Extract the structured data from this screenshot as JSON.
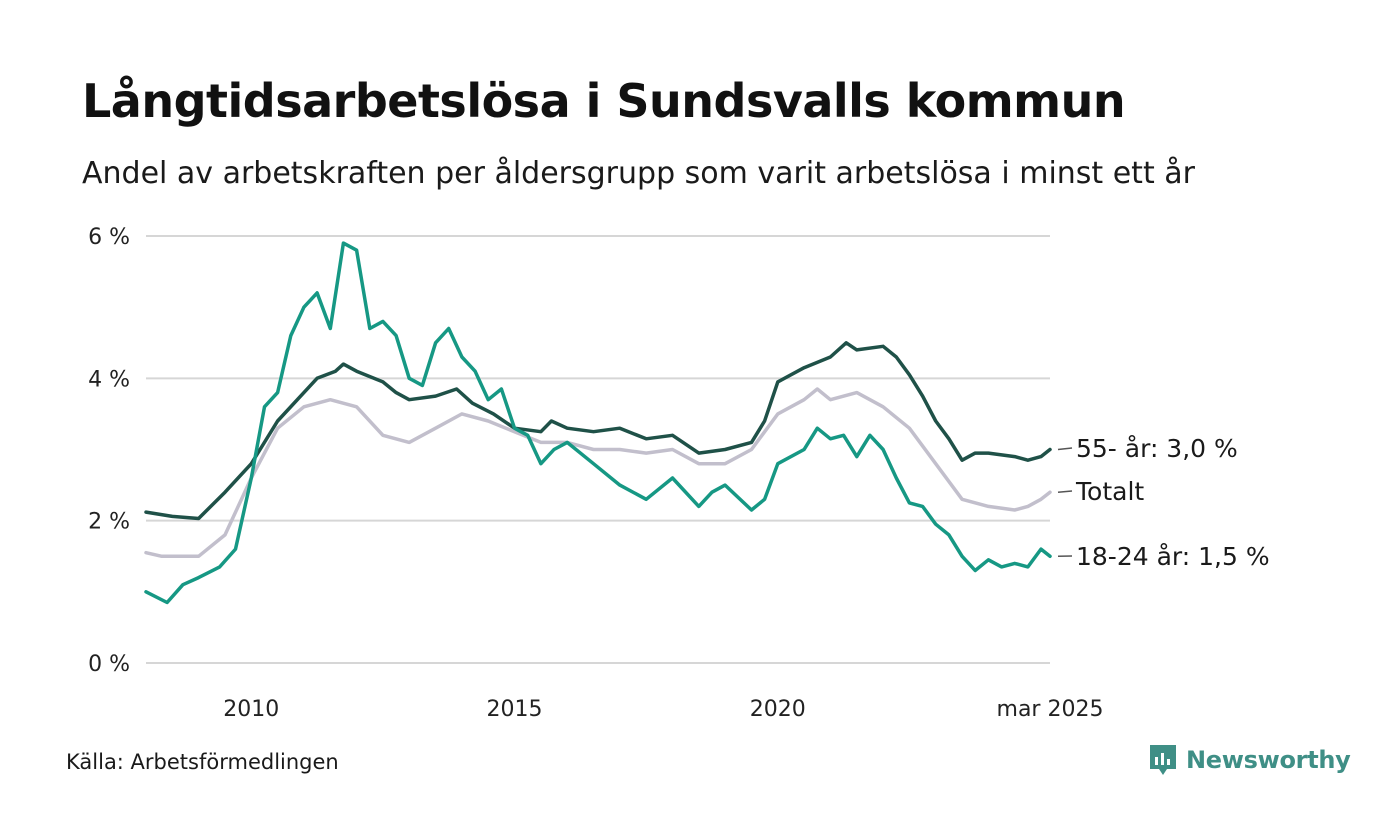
{
  "title": "Långtidsarbetslösa i Sundsvalls kommun",
  "subtitle": "Andel av arbetskraften per åldersgrupp som varit arbetslösa i minst ett år",
  "source": "Källa: Arbetsförmedlingen",
  "brand": "Newsworthy",
  "colors": {
    "age_55": "#1f5148",
    "total": "#c2bfcc",
    "age_18_24": "#169884",
    "grid": "#d6d6d6",
    "brand": "#3f8f86"
  },
  "chart_data": {
    "type": "line",
    "title": "Långtidsarbetslösa i Sundsvalls kommun",
    "subtitle": "Andel av arbetskraften per åldersgrupp som varit arbetslösa i minst ett år",
    "xlabel": "",
    "ylabel": "",
    "x_range": [
      2008.0,
      2025.17
    ],
    "ylim": [
      0,
      6
    ],
    "y_ticks": [
      0,
      2,
      4,
      6
    ],
    "y_tick_labels": [
      "0 %",
      "2 %",
      "4 %",
      "6 %"
    ],
    "x_ticks": [
      2010,
      2015,
      2020,
      2025.17
    ],
    "x_tick_labels": [
      "2010",
      "2015",
      "2020",
      "mar 2025"
    ],
    "grid": "horizontal",
    "series": [
      {
        "name": "55- år",
        "label": "55- år: 3,0 %",
        "color": "#1f5148",
        "points": [
          [
            2008.0,
            2.12
          ],
          [
            2008.5,
            2.06
          ],
          [
            2009.0,
            2.03
          ],
          [
            2009.5,
            2.4
          ],
          [
            2010.0,
            2.8
          ],
          [
            2010.5,
            3.4
          ],
          [
            2011.0,
            3.8
          ],
          [
            2011.25,
            4.0
          ],
          [
            2011.6,
            4.1
          ],
          [
            2011.75,
            4.2
          ],
          [
            2012.0,
            4.1
          ],
          [
            2012.5,
            3.95
          ],
          [
            2012.75,
            3.8
          ],
          [
            2013.0,
            3.7
          ],
          [
            2013.5,
            3.75
          ],
          [
            2013.9,
            3.85
          ],
          [
            2014.2,
            3.65
          ],
          [
            2014.6,
            3.5
          ],
          [
            2015.0,
            3.3
          ],
          [
            2015.5,
            3.25
          ],
          [
            2015.7,
            3.4
          ],
          [
            2016.0,
            3.3
          ],
          [
            2016.5,
            3.25
          ],
          [
            2017.0,
            3.3
          ],
          [
            2017.5,
            3.15
          ],
          [
            2018.0,
            3.2
          ],
          [
            2018.5,
            2.95
          ],
          [
            2019.0,
            3.0
          ],
          [
            2019.5,
            3.1
          ],
          [
            2019.75,
            3.4
          ],
          [
            2020.0,
            3.95
          ],
          [
            2020.5,
            4.15
          ],
          [
            2021.0,
            4.3
          ],
          [
            2021.3,
            4.5
          ],
          [
            2021.5,
            4.4
          ],
          [
            2022.0,
            4.45
          ],
          [
            2022.25,
            4.3
          ],
          [
            2022.5,
            4.05
          ],
          [
            2022.75,
            3.75
          ],
          [
            2023.0,
            3.4
          ],
          [
            2023.25,
            3.15
          ],
          [
            2023.5,
            2.85
          ],
          [
            2023.75,
            2.95
          ],
          [
            2024.0,
            2.95
          ],
          [
            2024.5,
            2.9
          ],
          [
            2024.75,
            2.85
          ],
          [
            2025.0,
            2.9
          ],
          [
            2025.17,
            3.0
          ]
        ]
      },
      {
        "name": "Totalt",
        "label": "Totalt",
        "color": "#c2bfcc",
        "points": [
          [
            2008.0,
            1.55
          ],
          [
            2008.3,
            1.5
          ],
          [
            2009.0,
            1.5
          ],
          [
            2009.5,
            1.8
          ],
          [
            2010.0,
            2.6
          ],
          [
            2010.5,
            3.3
          ],
          [
            2011.0,
            3.6
          ],
          [
            2011.5,
            3.7
          ],
          [
            2012.0,
            3.6
          ],
          [
            2012.5,
            3.2
          ],
          [
            2013.0,
            3.1
          ],
          [
            2013.5,
            3.3
          ],
          [
            2014.0,
            3.5
          ],
          [
            2014.5,
            3.4
          ],
          [
            2015.0,
            3.25
          ],
          [
            2015.5,
            3.1
          ],
          [
            2016.0,
            3.1
          ],
          [
            2016.5,
            3.0
          ],
          [
            2017.0,
            3.0
          ],
          [
            2017.5,
            2.95
          ],
          [
            2018.0,
            3.0
          ],
          [
            2018.5,
            2.8
          ],
          [
            2019.0,
            2.8
          ],
          [
            2019.5,
            3.0
          ],
          [
            2020.0,
            3.5
          ],
          [
            2020.5,
            3.7
          ],
          [
            2020.75,
            3.85
          ],
          [
            2021.0,
            3.7
          ],
          [
            2021.5,
            3.8
          ],
          [
            2022.0,
            3.6
          ],
          [
            2022.5,
            3.3
          ],
          [
            2023.0,
            2.8
          ],
          [
            2023.5,
            2.3
          ],
          [
            2024.0,
            2.2
          ],
          [
            2024.5,
            2.15
          ],
          [
            2024.75,
            2.2
          ],
          [
            2025.0,
            2.3
          ],
          [
            2025.17,
            2.4
          ]
        ]
      },
      {
        "name": "18-24 år",
        "label": "18-24 år: 1,5 %",
        "color": "#169884",
        "points": [
          [
            2008.0,
            1.0
          ],
          [
            2008.4,
            0.85
          ],
          [
            2008.7,
            1.1
          ],
          [
            2009.0,
            1.2
          ],
          [
            2009.4,
            1.35
          ],
          [
            2009.7,
            1.6
          ],
          [
            2010.0,
            2.6
          ],
          [
            2010.25,
            3.6
          ],
          [
            2010.5,
            3.8
          ],
          [
            2010.75,
            4.6
          ],
          [
            2011.0,
            5.0
          ],
          [
            2011.25,
            5.2
          ],
          [
            2011.5,
            4.7
          ],
          [
            2011.75,
            5.9
          ],
          [
            2012.0,
            5.8
          ],
          [
            2012.25,
            4.7
          ],
          [
            2012.5,
            4.8
          ],
          [
            2012.75,
            4.6
          ],
          [
            2013.0,
            4.0
          ],
          [
            2013.25,
            3.9
          ],
          [
            2013.5,
            4.5
          ],
          [
            2013.75,
            4.7
          ],
          [
            2014.0,
            4.3
          ],
          [
            2014.25,
            4.1
          ],
          [
            2014.5,
            3.7
          ],
          [
            2014.75,
            3.85
          ],
          [
            2015.0,
            3.3
          ],
          [
            2015.25,
            3.2
          ],
          [
            2015.5,
            2.8
          ],
          [
            2015.75,
            3.0
          ],
          [
            2016.0,
            3.1
          ],
          [
            2016.5,
            2.8
          ],
          [
            2017.0,
            2.5
          ],
          [
            2017.5,
            2.3
          ],
          [
            2018.0,
            2.6
          ],
          [
            2018.5,
            2.2
          ],
          [
            2018.75,
            2.4
          ],
          [
            2019.0,
            2.5
          ],
          [
            2019.5,
            2.15
          ],
          [
            2019.75,
            2.3
          ],
          [
            2020.0,
            2.8
          ],
          [
            2020.5,
            3.0
          ],
          [
            2020.75,
            3.3
          ],
          [
            2021.0,
            3.15
          ],
          [
            2021.25,
            3.2
          ],
          [
            2021.5,
            2.9
          ],
          [
            2021.75,
            3.2
          ],
          [
            2022.0,
            3.0
          ],
          [
            2022.25,
            2.6
          ],
          [
            2022.5,
            2.25
          ],
          [
            2022.75,
            2.2
          ],
          [
            2023.0,
            1.95
          ],
          [
            2023.25,
            1.8
          ],
          [
            2023.5,
            1.5
          ],
          [
            2023.75,
            1.3
          ],
          [
            2024.0,
            1.45
          ],
          [
            2024.25,
            1.35
          ],
          [
            2024.5,
            1.4
          ],
          [
            2024.75,
            1.35
          ],
          [
            2025.0,
            1.6
          ],
          [
            2025.17,
            1.5
          ]
        ]
      }
    ]
  }
}
